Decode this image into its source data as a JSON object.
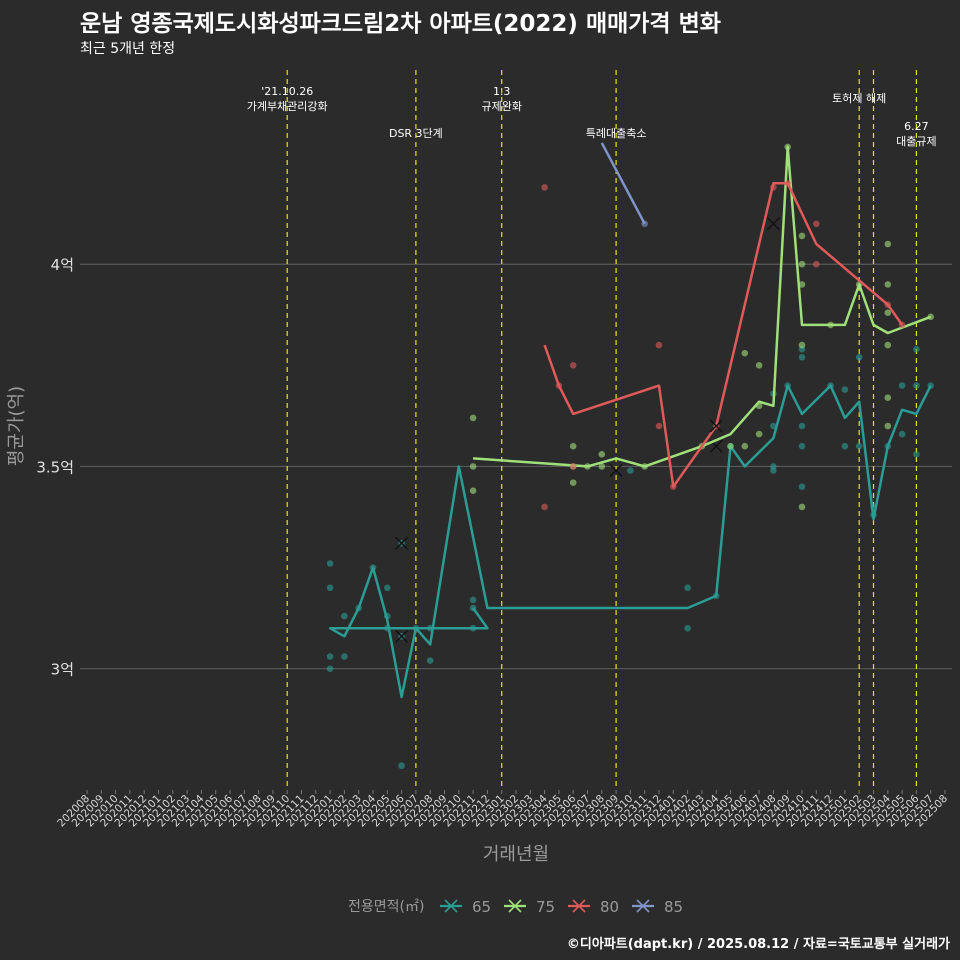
{
  "chart_data": {
    "type": "line",
    "title": "운남 영종국제도시화성파크드림2차 아파트(2022) 매매가격 변화",
    "subtitle": "최근 5개년 한정",
    "xlabel": "거래년월",
    "ylabel": "평균가(억)",
    "credit": "©디아파트(dapt.kr) / 2025.08.12 / 자료=국토교통부 실거래가",
    "legend_title": "전용면적(㎡)",
    "legend_position": "bottom",
    "grid": true,
    "ylim": [
      2.7,
      4.5
    ],
    "yticks": [
      {
        "value": 3.0,
        "label": "3억"
      },
      {
        "value": 3.5,
        "label": "3.5억"
      },
      {
        "value": 4.0,
        "label": "4억"
      }
    ],
    "x": [
      "202008",
      "202009",
      "202010",
      "202011",
      "202012",
      "202101",
      "202102",
      "202103",
      "202104",
      "202105",
      "202106",
      "202107",
      "202108",
      "202109",
      "202110",
      "202111",
      "202112",
      "202201",
      "202202",
      "202203",
      "202204",
      "202205",
      "202206",
      "202207",
      "202208",
      "202209",
      "202210",
      "202211",
      "202212",
      "202301",
      "202302",
      "202303",
      "202304",
      "202305",
      "202306",
      "202307",
      "202308",
      "202309",
      "202310",
      "202311",
      "202312",
      "202401",
      "202402",
      "202403",
      "202404",
      "202405",
      "202406",
      "202407",
      "202408",
      "202409",
      "202410",
      "202411",
      "202412",
      "202501",
      "202502",
      "202503",
      "202504",
      "202505",
      "202506",
      "202507",
      "202508"
    ],
    "events": [
      {
        "x": "202110",
        "label": "'21.10.26\n가계부채관리강화",
        "row": 0
      },
      {
        "x": "202207",
        "label": "DSR 3단계",
        "row": 1
      },
      {
        "x": "202301",
        "label": "1.3\n규제완화",
        "row": 0
      },
      {
        "x": "202309",
        "label": "특례대출축소",
        "row": 1
      },
      {
        "x": "202502",
        "label": "토허제 해제",
        "row": 2
      },
      {
        "x": "202503",
        "label": "",
        "row": 2
      },
      {
        "x": "202506",
        "label": "6.27\n대출규제",
        "row": 3
      }
    ],
    "series": [
      {
        "name": "65",
        "color": "#2a9d95",
        "line": [
          [
            "202211",
            3.15
          ],
          [
            "202212",
            3.1
          ],
          [
            "202201",
            3.1
          ],
          [
            "202202",
            3.08
          ],
          [
            "202203",
            3.15
          ],
          [
            "202204",
            3.25
          ],
          [
            "202205",
            3.12
          ],
          [
            "202206",
            2.93
          ],
          [
            "202207",
            3.1
          ],
          [
            "202208",
            3.06
          ],
          [
            "202210",
            3.5
          ],
          [
            "202212",
            3.15
          ],
          [
            "202402",
            3.15
          ],
          [
            "202404",
            3.18
          ],
          [
            "202405",
            3.55
          ],
          [
            "202406",
            3.5
          ],
          [
            "202408",
            3.57
          ],
          [
            "202409",
            3.7
          ],
          [
            "202410",
            3.63
          ],
          [
            "202412",
            3.7
          ],
          [
            "202501",
            3.62
          ],
          [
            "202502",
            3.66
          ],
          [
            "202503",
            3.37
          ],
          [
            "202504",
            3.55
          ],
          [
            "202505",
            3.64
          ],
          [
            "202506",
            3.63
          ],
          [
            "202507",
            3.7
          ]
        ],
        "points": [
          [
            "202211",
            3.17
          ],
          [
            "202211",
            3.15
          ],
          [
            "202211",
            3.1
          ],
          [
            "202201",
            3.26
          ],
          [
            "202201",
            3.2
          ],
          [
            "202201",
            3.03
          ],
          [
            "202201",
            3.0
          ],
          [
            "202202",
            3.03
          ],
          [
            "202202",
            3.13
          ],
          [
            "202203",
            3.15
          ],
          [
            "202204",
            3.25
          ],
          [
            "202205",
            3.2
          ],
          [
            "202205",
            3.13
          ],
          [
            "202205",
            3.1
          ],
          [
            "202206",
            2.76
          ],
          [
            "202206",
            3.08
          ],
          [
            "202206",
            3.31
          ],
          [
            "202207",
            3.1
          ],
          [
            "202208",
            3.1
          ],
          [
            "202208",
            3.02
          ],
          [
            "202310",
            3.49
          ],
          [
            "202402",
            3.2
          ],
          [
            "202402",
            3.1
          ],
          [
            "202404",
            3.18
          ],
          [
            "202405",
            3.55
          ],
          [
            "202408",
            3.6
          ],
          [
            "202408",
            3.5
          ],
          [
            "202408",
            3.49
          ],
          [
            "202408",
            3.68
          ],
          [
            "202409",
            3.7
          ],
          [
            "202410",
            3.55
          ],
          [
            "202410",
            3.45
          ],
          [
            "202410",
            3.6
          ],
          [
            "202410",
            3.79
          ],
          [
            "202410",
            3.77
          ],
          [
            "202412",
            3.7
          ],
          [
            "202501",
            3.55
          ],
          [
            "202501",
            3.69
          ],
          [
            "202502",
            3.77
          ],
          [
            "202502",
            3.55
          ],
          [
            "202503",
            3.4
          ],
          [
            "202503",
            3.38
          ],
          [
            "202504",
            3.55
          ],
          [
            "202505",
            3.7
          ],
          [
            "202505",
            3.58
          ],
          [
            "202506",
            3.79
          ],
          [
            "202506",
            3.53
          ],
          [
            "202506",
            3.7
          ],
          [
            "202507",
            3.7
          ]
        ],
        "means": [
          [
            "202206",
            3.31
          ],
          [
            "202206",
            3.08
          ],
          [
            "202404",
            3.55
          ]
        ]
      },
      {
        "name": "75",
        "color": "#a0e07a",
        "line": [
          [
            "202211",
            3.52
          ],
          [
            "202307",
            3.5
          ],
          [
            "202309",
            3.52
          ],
          [
            "202311",
            3.5
          ],
          [
            "202403",
            3.55
          ],
          [
            "202405",
            3.58
          ],
          [
            "202407",
            3.66
          ],
          [
            "202408",
            3.65
          ],
          [
            "202409",
            4.29
          ],
          [
            "202410",
            3.85
          ],
          [
            "202501",
            3.85
          ],
          [
            "202502",
            3.95
          ],
          [
            "202503",
            3.85
          ],
          [
            "202504",
            3.83
          ],
          [
            "202507",
            3.87
          ]
        ],
        "points": [
          [
            "202211",
            3.62
          ],
          [
            "202211",
            3.5
          ],
          [
            "202211",
            3.44
          ],
          [
            "202306",
            3.55
          ],
          [
            "202306",
            3.46
          ],
          [
            "202306",
            3.5
          ],
          [
            "202307",
            3.5
          ],
          [
            "202308",
            3.5
          ],
          [
            "202308",
            3.53
          ],
          [
            "202311",
            3.5
          ],
          [
            "202403",
            3.55
          ],
          [
            "202405",
            3.55
          ],
          [
            "202406",
            3.78
          ],
          [
            "202406",
            3.55
          ],
          [
            "202407",
            3.75
          ],
          [
            "202407",
            3.65
          ],
          [
            "202407",
            3.58
          ],
          [
            "202409",
            4.29
          ],
          [
            "202410",
            4.07
          ],
          [
            "202410",
            4.0
          ],
          [
            "202410",
            3.95
          ],
          [
            "202410",
            3.8
          ],
          [
            "202410",
            3.4
          ],
          [
            "202412",
            3.85
          ],
          [
            "202502",
            3.95
          ],
          [
            "202504",
            4.05
          ],
          [
            "202504",
            3.95
          ],
          [
            "202504",
            3.88
          ],
          [
            "202504",
            3.8
          ],
          [
            "202504",
            3.67
          ],
          [
            "202504",
            3.6
          ],
          [
            "202507",
            3.87
          ]
        ],
        "means": [
          [
            "202309",
            3.49
          ]
        ]
      },
      {
        "name": "80",
        "color": "#e05a5a",
        "line": [
          [
            "202304",
            3.8
          ],
          [
            "202305",
            3.7
          ],
          [
            "202306",
            3.63
          ],
          [
            "202312",
            3.7
          ],
          [
            "202401",
            3.45
          ],
          [
            "202404",
            3.6
          ],
          [
            "202408",
            4.2
          ],
          [
            "202409",
            4.2
          ],
          [
            "202411",
            4.05
          ],
          [
            "202504",
            3.9
          ],
          [
            "202505",
            3.85
          ]
        ],
        "points": [
          [
            "202304",
            4.19
          ],
          [
            "202304",
            3.4
          ],
          [
            "202305",
            3.7
          ],
          [
            "202306",
            3.75
          ],
          [
            "202306",
            3.5
          ],
          [
            "202312",
            3.8
          ],
          [
            "202312",
            3.6
          ],
          [
            "202401",
            3.45
          ],
          [
            "202404",
            3.6
          ],
          [
            "202408",
            4.19
          ],
          [
            "202409",
            4.2
          ],
          [
            "202411",
            4.1
          ],
          [
            "202411",
            4.0
          ],
          [
            "202504",
            3.9
          ],
          [
            "202505",
            3.85
          ]
        ],
        "means": [
          [
            "202404",
            3.6
          ],
          [
            "202408",
            4.1
          ]
        ]
      },
      {
        "name": "85",
        "color": "#7f95c8",
        "line": [
          [
            "202308",
            4.3
          ],
          [
            "202311",
            4.1
          ]
        ],
        "points": [
          [
            "202311",
            4.1
          ]
        ],
        "means": []
      }
    ]
  }
}
